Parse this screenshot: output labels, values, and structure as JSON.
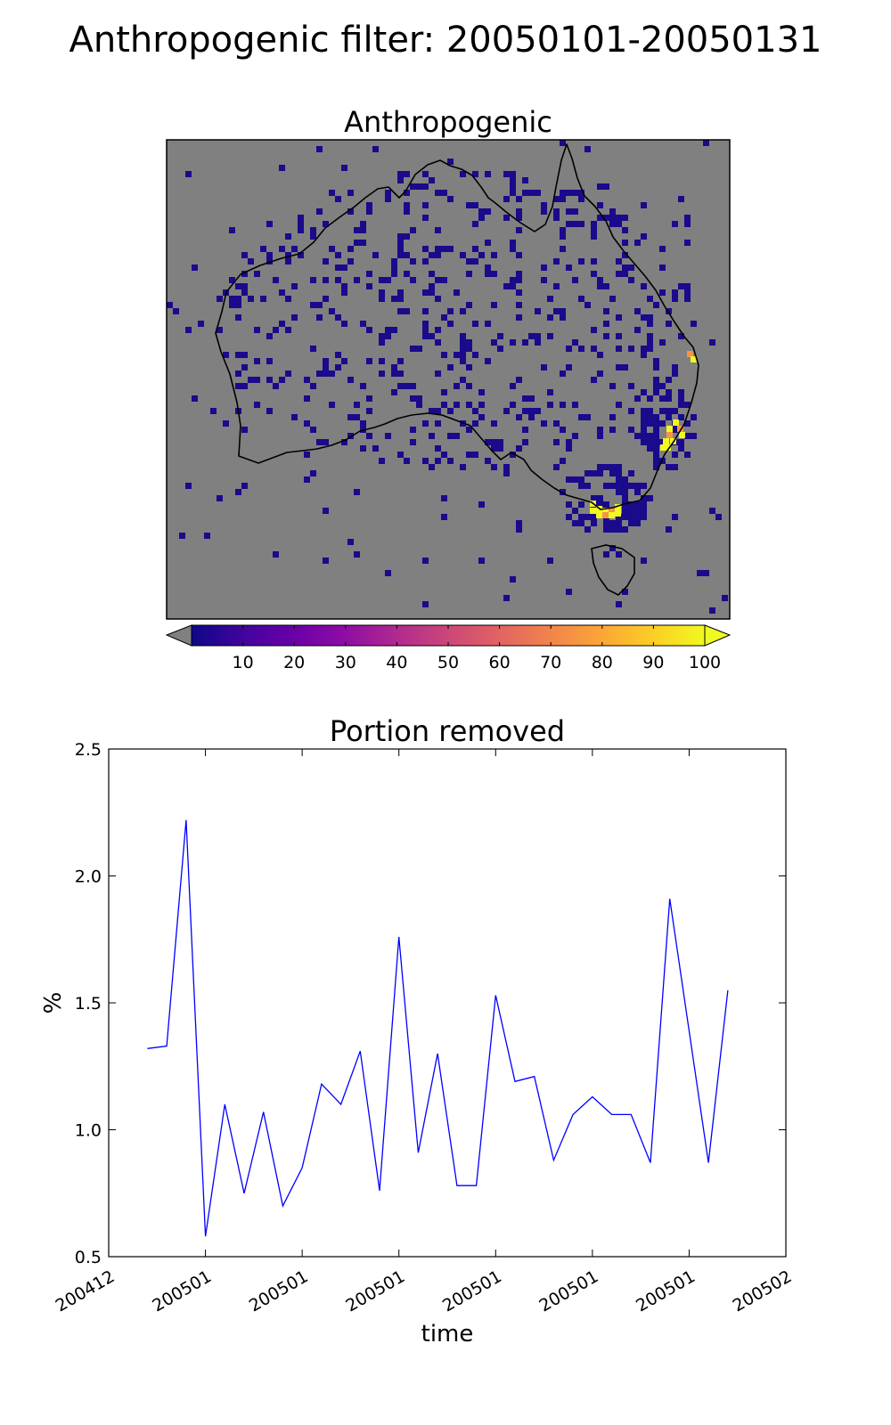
{
  "figure": {
    "suptitle": "Anthropogenic filter: 20050101-20050131"
  },
  "map_panel": {
    "title": "Anthropogenic",
    "background_color": "#808080",
    "low_pixel_color": "#1a0a8c",
    "high_pixel_color": "#f0f921",
    "colorbar": {
      "colormap": "plasma",
      "ticks": [
        "10",
        "20",
        "30",
        "40",
        "50",
        "60",
        "70",
        "80",
        "90",
        "100"
      ],
      "range": [
        0,
        100
      ],
      "extend_low_color": "#808080",
      "extend_high_color": "#f0f921"
    }
  },
  "chart_data": {
    "type": "line",
    "title": "Portion removed",
    "xlabel": "time",
    "ylabel": "%",
    "ylim": [
      0.5,
      2.5
    ],
    "yticks": [
      0.5,
      1.0,
      1.5,
      2.0,
      2.5
    ],
    "ytick_labels": [
      "0.5",
      "1.0",
      "1.5",
      "2.0",
      "2.5"
    ],
    "xtick_labels": [
      "200412",
      "200501",
      "200501",
      "200501",
      "200501",
      "200501",
      "200501",
      "200502"
    ],
    "xtick_dates": [
      "2004-12-27",
      "2005-01-01",
      "2005-01-06",
      "2005-01-11",
      "2005-01-16",
      "2005-01-21",
      "2005-01-26",
      "2005-01-31"
    ],
    "xlim": [
      "2004-12-27",
      "2005-01-31"
    ],
    "grid": false,
    "line_color": "#0000ff",
    "series": [
      {
        "x": [
          "2004-12-29",
          "2004-12-30",
          "2004-12-31",
          "2005-01-01",
          "2005-01-02",
          "2005-01-03",
          "2005-01-04",
          "2005-01-05",
          "2005-01-06",
          "2005-01-07",
          "2005-01-08",
          "2005-01-09",
          "2005-01-10",
          "2005-01-11",
          "2005-01-12",
          "2005-01-13",
          "2005-01-14",
          "2005-01-15",
          "2005-01-16",
          "2005-01-17",
          "2005-01-18",
          "2005-01-19",
          "2005-01-20",
          "2005-01-21",
          "2005-01-22",
          "2005-01-23",
          "2005-01-24",
          "2005-01-25",
          "2005-01-26",
          "2005-01-27",
          "2005-01-28"
        ],
        "values": [
          1.32,
          1.33,
          2.22,
          0.58,
          1.1,
          0.75,
          1.07,
          0.7,
          0.85,
          1.18,
          1.1,
          1.31,
          0.76,
          1.76,
          0.91,
          1.3,
          0.78,
          0.78,
          1.53,
          1.19,
          1.21,
          0.88,
          1.06,
          1.13,
          1.06,
          1.06,
          0.87,
          1.91,
          1.39,
          0.87,
          1.55
        ]
      }
    ]
  }
}
